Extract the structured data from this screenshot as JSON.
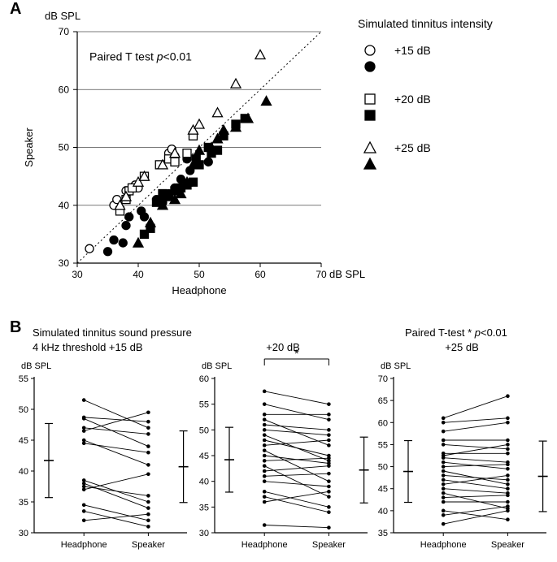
{
  "panelA": {
    "label": "A",
    "type": "scatter",
    "title_annot_left": "Paired T test",
    "title_annot_right": "p<0.01",
    "x_label": "Headphone",
    "y_label": "Speaker",
    "x_unit": "dB SPL",
    "y_unit": "dB SPL",
    "xlim": [
      30,
      70
    ],
    "ylim": [
      30,
      70
    ],
    "ticks": [
      30,
      40,
      50,
      60,
      70
    ],
    "background_color": "#ffffff",
    "grid_color": "#4d4d4d",
    "axis_color": "#000000",
    "identity_line": {
      "dash": "2,3",
      "color": "#000000",
      "width": 1
    },
    "legend": {
      "title": "Simulated tinnitus intensity",
      "items": [
        {
          "label": "+15 dB",
          "marker": "circle",
          "fill": "open"
        },
        {
          "label": "",
          "marker": "circle",
          "fill": "solid"
        },
        {
          "label": "+20 dB",
          "marker": "square",
          "fill": "open"
        },
        {
          "label": "",
          "marker": "square",
          "fill": "solid"
        },
        {
          "label": "+25 dB",
          "marker": "triangle",
          "fill": "open"
        },
        {
          "label": "",
          "marker": "triangle",
          "fill": "solid"
        }
      ],
      "text_color": "#000000"
    },
    "marker_size": 10,
    "marker_stroke": "#000000",
    "series": [
      {
        "marker": "circle",
        "fill": "open",
        "color": "#000000",
        "points": [
          [
            32,
            32.5
          ],
          [
            36,
            40
          ],
          [
            36.5,
            41
          ],
          [
            38,
            42.5
          ],
          [
            39.5,
            43.5
          ],
          [
            40,
            43
          ],
          [
            45,
            49
          ],
          [
            45.5,
            49.7
          ],
          [
            46,
            48.5
          ]
        ]
      },
      {
        "marker": "circle",
        "fill": "solid",
        "color": "#000000",
        "points": [
          [
            35,
            32
          ],
          [
            36,
            34
          ],
          [
            37.5,
            33.5
          ],
          [
            38,
            36.5
          ],
          [
            38.5,
            38
          ],
          [
            40.5,
            39
          ],
          [
            41,
            38
          ],
          [
            43,
            41
          ],
          [
            44,
            40.5
          ],
          [
            45,
            42
          ],
          [
            46,
            43
          ],
          [
            47,
            44.5
          ],
          [
            48.5,
            46
          ],
          [
            48,
            48
          ],
          [
            51.5,
            47.5
          ]
        ]
      },
      {
        "marker": "square",
        "fill": "open",
        "color": "#000000",
        "points": [
          [
            37,
            39
          ],
          [
            38,
            41
          ],
          [
            38.5,
            42.5
          ],
          [
            39,
            43
          ],
          [
            41,
            45
          ],
          [
            43.5,
            47
          ],
          [
            45,
            48
          ],
          [
            46,
            47.5
          ],
          [
            48,
            49
          ],
          [
            49,
            52
          ]
        ]
      },
      {
        "marker": "square",
        "fill": "solid",
        "color": "#000000",
        "points": [
          [
            41,
            35
          ],
          [
            42,
            36
          ],
          [
            43,
            40.5
          ],
          [
            44,
            42
          ],
          [
            45,
            41.5
          ],
          [
            46,
            42.5
          ],
          [
            47,
            43
          ],
          [
            48,
            43.5
          ],
          [
            49,
            44
          ],
          [
            49.5,
            48
          ],
          [
            50,
            47
          ],
          [
            51.5,
            50
          ],
          [
            52,
            49
          ],
          [
            53,
            49.5
          ],
          [
            54,
            52
          ],
          [
            56,
            54
          ],
          [
            57.5,
            55
          ]
        ]
      },
      {
        "marker": "triangle",
        "fill": "open",
        "color": "#000000",
        "points": [
          [
            37,
            40
          ],
          [
            38,
            41.5
          ],
          [
            40,
            44
          ],
          [
            41,
            45
          ],
          [
            44,
            47
          ],
          [
            46,
            49
          ],
          [
            49,
            53
          ],
          [
            50,
            54
          ],
          [
            53,
            56
          ],
          [
            56,
            61
          ],
          [
            60,
            66
          ]
        ]
      },
      {
        "marker": "triangle",
        "fill": "solid",
        "color": "#000000",
        "points": [
          [
            40,
            33.5
          ],
          [
            42,
            37
          ],
          [
            44,
            40
          ],
          [
            46,
            41
          ],
          [
            47,
            42
          ],
          [
            48,
            44
          ],
          [
            49,
            47
          ],
          [
            50,
            49.5
          ],
          [
            52,
            50
          ],
          [
            53,
            51.5
          ],
          [
            54,
            53
          ],
          [
            56,
            53.5
          ],
          [
            58,
            55
          ],
          [
            61,
            58
          ]
        ]
      }
    ]
  },
  "panelB": {
    "label": "B",
    "type": "paired-line",
    "header1": "Simulated tinnitus sound pressure",
    "header2_prefix": "4 kHz threshold",
    "header_right": "Paired T-test",
    "header_right_sig": "* p<0.01",
    "categories": [
      "Headphone",
      "Speaker"
    ],
    "marker_color": "#000000",
    "line_color": "#000000",
    "axis_color": "#000000",
    "tick_label_fontsize": 11,
    "subplots": [
      {
        "title": "+15 dB",
        "ylim": [
          30,
          55
        ],
        "ytick_step": 5,
        "y_unit": "dB SPL",
        "sig": false,
        "mean": [
          41.7,
          40.7
        ],
        "error": [
          6.0,
          5.8
        ],
        "pairs": [
          [
            32,
            33
          ],
          [
            33.5,
            31
          ],
          [
            34.5,
            32
          ],
          [
            37,
            39.5
          ],
          [
            37.5,
            36
          ],
          [
            38,
            34
          ],
          [
            38.5,
            35
          ],
          [
            44.5,
            43
          ],
          [
            45,
            41
          ],
          [
            46.5,
            49.5
          ],
          [
            47,
            46
          ],
          [
            48.5,
            44
          ],
          [
            48.7,
            48
          ],
          [
            51.5,
            47
          ]
        ]
      },
      {
        "title": "+20 dB",
        "ylim": [
          30,
          60
        ],
        "ytick_step": 5,
        "y_unit": "dB SPL",
        "sig": true,
        "mean": [
          44.2,
          42.2
        ],
        "error": [
          6.3,
          6.4
        ],
        "pairs": [
          [
            31.5,
            31
          ],
          [
            36,
            38
          ],
          [
            37,
            34
          ],
          [
            38,
            35
          ],
          [
            40,
            39
          ],
          [
            41,
            41.5
          ],
          [
            42,
            43
          ],
          [
            43,
            37
          ],
          [
            44,
            44.5
          ],
          [
            45,
            43.5
          ],
          [
            46,
            40
          ],
          [
            47,
            48
          ],
          [
            48,
            45
          ],
          [
            49,
            44
          ],
          [
            50,
            49
          ],
          [
            51,
            50
          ],
          [
            52,
            47
          ],
          [
            53,
            53
          ],
          [
            55,
            52
          ],
          [
            57.5,
            55
          ]
        ]
      },
      {
        "title": "+25 dB",
        "ylim": [
          35,
          70
        ],
        "ytick_step": 5,
        "y_unit": "dB SPL",
        "sig": false,
        "mean": [
          48.9,
          47.8
        ],
        "error": [
          7.0,
          8.0
        ],
        "pairs": [
          [
            37,
            40
          ],
          [
            39,
            41
          ],
          [
            40,
            38
          ],
          [
            42,
            42
          ],
          [
            43,
            43.5
          ],
          [
            44,
            40.5
          ],
          [
            45,
            44
          ],
          [
            46,
            48
          ],
          [
            47,
            45
          ],
          [
            48,
            47
          ],
          [
            49,
            46
          ],
          [
            50,
            50.5
          ],
          [
            51,
            49.5
          ],
          [
            52,
            51
          ],
          [
            52.5,
            55
          ],
          [
            53,
            53
          ],
          [
            55,
            54
          ],
          [
            56,
            56
          ],
          [
            58,
            60
          ],
          [
            60,
            61
          ],
          [
            61,
            66
          ]
        ]
      }
    ]
  }
}
